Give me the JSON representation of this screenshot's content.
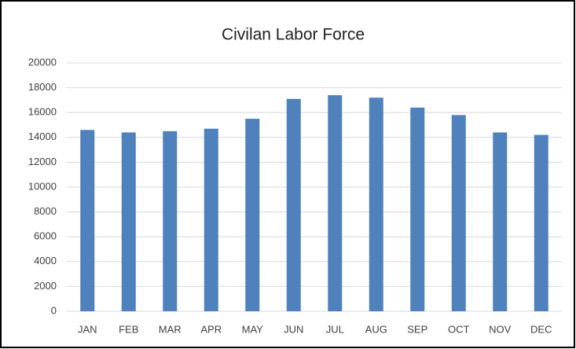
{
  "chart_data": {
    "type": "bar",
    "title": "Civilan Labor Force",
    "categories": [
      "JAN",
      "FEB",
      "MAR",
      "APR",
      "MAY",
      "JUN",
      "JUL",
      "AUG",
      "SEP",
      "OCT",
      "NOV",
      "DEC"
    ],
    "values": [
      14600,
      14400,
      14500,
      14700,
      15500,
      17100,
      17400,
      17200,
      16400,
      15800,
      14400,
      14200
    ],
    "color": "#4f81bd",
    "ylim": [
      0,
      20000
    ],
    "yticks": [
      0,
      2000,
      4000,
      6000,
      8000,
      10000,
      12000,
      14000,
      16000,
      18000,
      20000
    ],
    "grid": true
  }
}
